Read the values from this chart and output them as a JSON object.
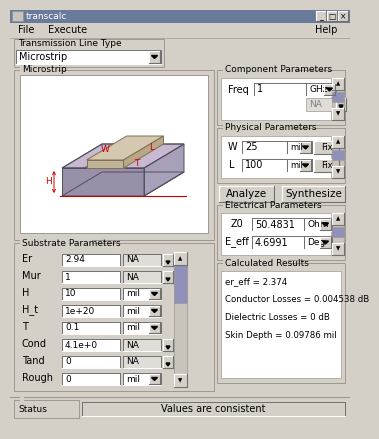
{
  "title": "transcalc",
  "bg_color": "#d4d0c8",
  "menubar_items": [
    "File",
    "Execute",
    "Help"
  ],
  "transmission_line_type": "Microstrip",
  "component_params_label": "Component Parameters",
  "component_freq_value": "1",
  "component_freq_unit": "GHz",
  "component_na": "NA",
  "physical_params_label": "Physical Parameters",
  "physical_rows": [
    {
      "name": "W",
      "value": "25",
      "unit": "mil"
    },
    {
      "name": "L",
      "value": "100",
      "unit": "mil"
    }
  ],
  "buttons": [
    "Analyze",
    "Synthesize"
  ],
  "electrical_params_label": "Electrical Parameters",
  "electrical_rows": [
    {
      "name": "Z0",
      "value": "50.4831",
      "unit": "Ohm"
    },
    {
      "name": "E_eff",
      "value": "4.6991",
      "unit": "Deg"
    }
  ],
  "calculated_results_label": "Calculated Results",
  "calculated_lines": [
    "er_eff = 2.374",
    "Conductor Losses = 0.004538 dB",
    "Dielectric Losses = 0 dB",
    "Skin Depth = 0.09786 mil"
  ],
  "substrate_params_label": "Substrate Parameters",
  "substrate_rows": [
    {
      "name": "Er",
      "value": "2.94",
      "unit": "NA"
    },
    {
      "name": "Mur",
      "value": "1",
      "unit": "NA"
    },
    {
      "name": "H",
      "value": "10",
      "unit": "mil"
    },
    {
      "name": "H_t",
      "value": "1e+20",
      "unit": "mil"
    },
    {
      "name": "T",
      "value": "0.1",
      "unit": "mil"
    },
    {
      "name": "Cond",
      "value": "4.1e+0",
      "unit": "NA"
    },
    {
      "name": "Tand",
      "value": "0",
      "unit": "NA"
    },
    {
      "name": "Rough",
      "value": "0",
      "unit": "mil"
    }
  ],
  "status_label": "Status",
  "status_value": "Values are consistent",
  "titlebar_color": "#6a7a9a",
  "scrollbar_color": "#9090b8",
  "field_bg": "#e8e8e8",
  "white": "#ffffff",
  "light_gray": "#c8c4bc",
  "mid_gray": "#a09890",
  "dark_gray": "#707070"
}
